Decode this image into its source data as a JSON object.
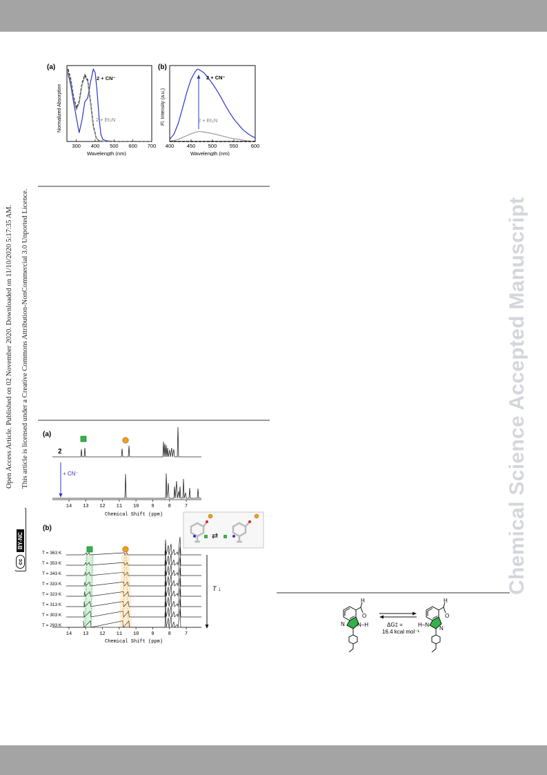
{
  "side_notice": {
    "line1": "Open Access Article. Published on 02 November 2020. Downloaded on 11/10/2020 5:17:35 AM.",
    "line2": "This article is licensed under a Creative Commons Attribution-NonCommercial 3.0 Unported Licence.",
    "badge_cc": "cc",
    "badge_terms": "BY-NC"
  },
  "watermark": "Chemical Science Accepted Manuscript",
  "figure_spectra": {
    "panel_a": {
      "label": "(a)",
      "ylabel": "Normalized Absorption",
      "xlabel": "Wavelength (nm)",
      "xticks": [
        "300",
        "400",
        "500",
        "600",
        "700"
      ],
      "annot_cn": "2 + CN⁻",
      "annot_et3n": "2 + Et₃N"
    },
    "panel_b": {
      "label": "(b)",
      "ylabel": "Fl. Intensity (a.u.)",
      "xlabel": "Wavelength (nm)",
      "xticks": [
        "400",
        "450",
        "500",
        "550",
        "600"
      ],
      "annot_cn": "2 + CN⁻",
      "annot_et3n": "2 + Et₃N"
    }
  },
  "chart_data": [
    {
      "type": "line",
      "xlabel": "Wavelength (nm)",
      "ylabel": "Normalized Absorption",
      "xlim": [
        250,
        700
      ],
      "ylim": [
        0,
        1.05
      ],
      "series": [
        {
          "name": "2 + CN⁻",
          "color": "#2a34c8",
          "x": [
            255,
            270,
            285,
            300,
            315,
            330,
            345,
            360,
            375,
            390,
            400,
            410,
            420,
            430,
            440,
            460,
            500,
            700
          ],
          "y": [
            0.95,
            0.78,
            0.55,
            0.33,
            0.12,
            0.3,
            0.55,
            0.6,
            0.82,
            1.0,
            0.95,
            0.7,
            0.35,
            0.1,
            0.03,
            0.01,
            0.0,
            0.0
          ]
        },
        {
          "name": "",
          "color": "#111111",
          "dashed": true,
          "x": [
            255,
            270,
            285,
            300,
            315,
            330,
            345,
            360,
            375,
            390,
            405,
            420,
            450,
            700
          ],
          "y": [
            1.0,
            0.86,
            0.62,
            0.46,
            0.55,
            0.8,
            0.92,
            0.85,
            0.55,
            0.22,
            0.05,
            0.01,
            0.0,
            0.0
          ]
        },
        {
          "name": "2 + Et₃N",
          "color": "#8a8a8a",
          "x": [
            255,
            270,
            285,
            300,
            315,
            330,
            345,
            360,
            375,
            390,
            405,
            420,
            450,
            700
          ],
          "y": [
            0.97,
            0.84,
            0.6,
            0.44,
            0.53,
            0.78,
            0.9,
            0.83,
            0.53,
            0.2,
            0.05,
            0.01,
            0.0,
            0.0
          ]
        }
      ]
    },
    {
      "type": "line",
      "xlabel": "Wavelength (nm)",
      "ylabel": "Fl. Intensity (a.u.)",
      "xlim": [
        400,
        600
      ],
      "ylim": [
        0,
        1.05
      ],
      "series": [
        {
          "name": "2 + CN⁻",
          "color": "#2a34c8",
          "x": [
            400,
            410,
            420,
            430,
            440,
            450,
            460,
            465,
            470,
            480,
            490,
            500,
            510,
            520,
            530,
            540,
            550,
            560,
            570,
            580,
            590,
            600
          ],
          "y": [
            0.03,
            0.1,
            0.25,
            0.46,
            0.68,
            0.86,
            0.97,
            1.0,
            0.99,
            0.95,
            0.88,
            0.8,
            0.71,
            0.61,
            0.5,
            0.4,
            0.31,
            0.24,
            0.17,
            0.12,
            0.08,
            0.05
          ]
        },
        {
          "name": "2 + Et₃N",
          "color": "#9a9a9a",
          "x": [
            400,
            420,
            440,
            460,
            470,
            480,
            500,
            520,
            540,
            560,
            580,
            600
          ],
          "y": [
            0.0,
            0.03,
            0.08,
            0.13,
            0.14,
            0.13,
            0.11,
            0.08,
            0.05,
            0.03,
            0.01,
            0.0
          ]
        },
        {
          "name": "",
          "color": "#111111",
          "dashed": true,
          "x": [
            400,
            600
          ],
          "y": [
            0.0,
            0.0
          ]
        }
      ]
    }
  ],
  "figure_nmr": {
    "panel_a": {
      "label": "(a)",
      "trace_top_label": "2",
      "arrow_label": "+ CN⁻",
      "xlabel": "Chemical Shift (ppm)",
      "xticks": [
        "14",
        "13",
        "12",
        "11",
        "10",
        "9",
        "8",
        "7"
      ]
    },
    "panel_b": {
      "label": "(b)",
      "xlabel": "Chemical Shift (ppm)",
      "xticks": [
        "14",
        "13",
        "12",
        "11",
        "10",
        "9",
        "8",
        "7"
      ],
      "temperatures": [
        "T = 363 K",
        "T = 353 K",
        "T = 343 K",
        "T = 333 K",
        "T = 323 K",
        "T = 313 K",
        "T = 303 K",
        "T = 293 K"
      ],
      "arrow_label": "T ↓"
    }
  },
  "scheme": {
    "left_atoms": {
      "h_top": "H",
      "o": "O",
      "nh": "N–H",
      "n": "N"
    },
    "right_atoms": {
      "h_top": "H",
      "o": "O",
      "hn": "H–N",
      "n": "N"
    },
    "energy_line1": "ΔG‡ =",
    "energy_line2": "16.4 kcal mol⁻¹"
  },
  "colors": {
    "blue": "#2a34c8",
    "green": "#33b24a",
    "orange": "#f0a020",
    "gray_band": "#a4a4a4",
    "watermark": "#d4d6dc"
  }
}
